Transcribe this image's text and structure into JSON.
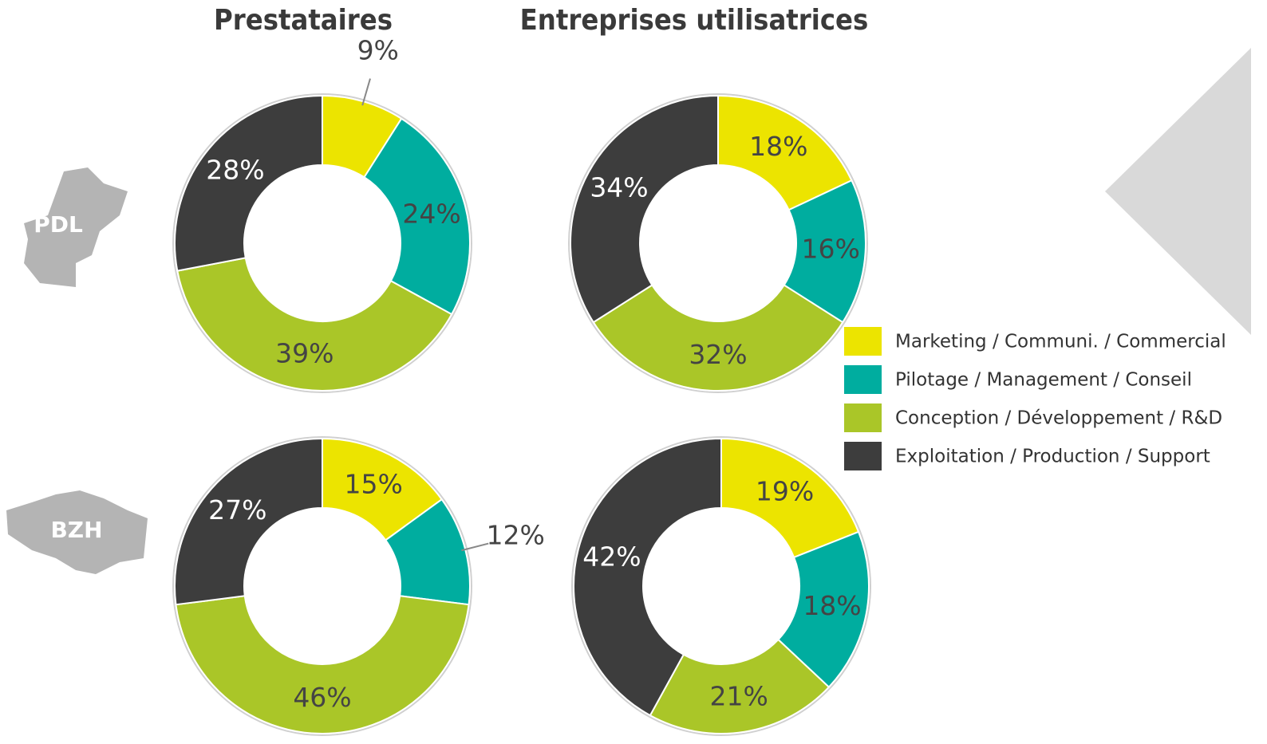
{
  "columns": [
    "Prestataires",
    "Entreprises utilisatrices"
  ],
  "rows": [
    "PDL",
    "BZH"
  ],
  "legend": {
    "labels": [
      "Marketing / Communi. / Commercial",
      "Pilotage / Management / Conseil",
      "Conception / Développement / R&D",
      "Exploitation / Production / Support"
    ],
    "colors": [
      "#ece400",
      "#00ad9f",
      "#aac628",
      "#3d3d3d"
    ]
  },
  "chart_data": [
    {
      "type": "pie",
      "values": [
        9,
        24,
        39,
        28
      ],
      "value_labels": [
        "9%",
        "24%",
        "39%",
        "28%"
      ]
    },
    {
      "type": "pie",
      "values": [
        18,
        16,
        32,
        34
      ],
      "value_labels": [
        "18%",
        "16%",
        "32%",
        "34%"
      ]
    },
    {
      "type": "pie",
      "values": [
        15,
        12,
        46,
        27
      ],
      "value_labels": [
        "15%",
        "12%",
        "46%",
        "27%"
      ]
    },
    {
      "type": "pie",
      "values": [
        19,
        18,
        21,
        42
      ],
      "value_labels": [
        "19%",
        "18%",
        "21%",
        "42%"
      ]
    }
  ]
}
